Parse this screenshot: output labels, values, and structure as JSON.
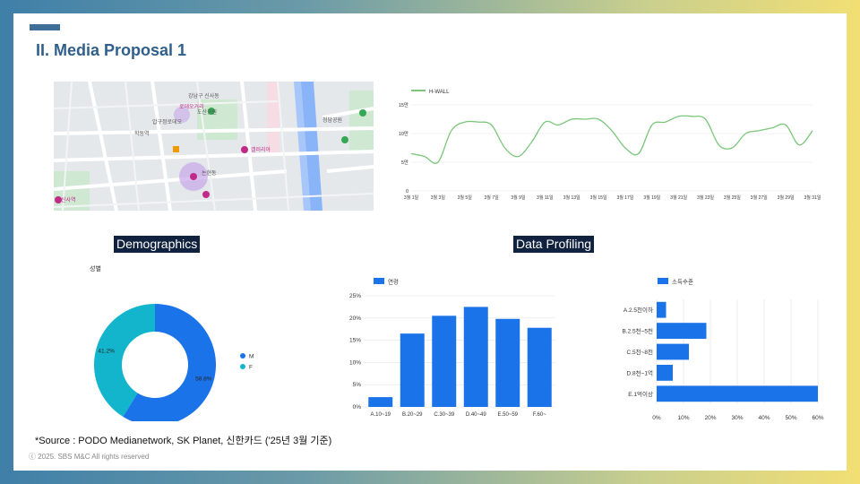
{
  "slide": {
    "title": "II. Media Proposal 1",
    "section_demographics": "Demographics",
    "section_profiling": "Data Profiling",
    "source": "*Source : PODO Medianetwork, SK Planet, 신한카드 ('25년 3월 기준)",
    "copyright": "ⓒ 2025. SBS M&C All rights reserved"
  },
  "map": {
    "labels": [
      "강남구 신사동",
      "로데오거리",
      "압구정로데오",
      "학동역",
      "청담공원",
      "도산공원",
      "논현동",
      "갤러리아",
      "신사역"
    ]
  },
  "chart_data": [
    {
      "type": "line",
      "legend": "H-WALL",
      "ylim": [
        0,
        15
      ],
      "y_ticks": [
        "0",
        "5만",
        "10만",
        "15만"
      ],
      "x_ticks": [
        "3월 1일",
        "3월 3일",
        "3월 5일",
        "3월 7일",
        "3월 9일",
        "3월 11일",
        "3월 13일",
        "3월 15일",
        "3월 17일",
        "3월 19일",
        "3월 21일",
        "3월 23일",
        "3월 25일",
        "3월 27일",
        "3월 29일",
        "3월 31일"
      ],
      "x": [
        1,
        2,
        3,
        4,
        5,
        6,
        7,
        8,
        9,
        10,
        11,
        12,
        13,
        14,
        15,
        16,
        17,
        18,
        19,
        20,
        21,
        22,
        23,
        24,
        25,
        26,
        27,
        28,
        29,
        30,
        31
      ],
      "values": [
        6.5,
        6.0,
        5.0,
        10.5,
        12.0,
        12.0,
        11.5,
        7.5,
        6.0,
        8.5,
        12.0,
        11.5,
        12.5,
        12.5,
        12.5,
        10.5,
        7.5,
        6.5,
        11.5,
        12.0,
        13.0,
        13.0,
        12.5,
        8.0,
        7.5,
        10.0,
        10.5,
        11.0,
        11.5,
        8.0,
        10.5
      ],
      "color": "#7bc67b"
    },
    {
      "type": "pie",
      "title": "성별",
      "labels": [
        "M",
        "F"
      ],
      "values": [
        58.8,
        41.2
      ],
      "value_labels": [
        "58.8%",
        "41.2%"
      ],
      "colors": [
        "#1a73e8",
        "#12b5cb"
      ]
    },
    {
      "type": "bar",
      "legend": "연령",
      "categories": [
        "A.10~19",
        "B.20~29",
        "C.30~39",
        "D.40~49",
        "E.50~59",
        "F.60~"
      ],
      "values": [
        2.2,
        16.5,
        20.5,
        22.5,
        19.8,
        17.8
      ],
      "y_ticks": [
        "0%",
        "5%",
        "10%",
        "15%",
        "20%",
        "25%"
      ],
      "ylim": [
        0,
        25
      ],
      "color": "#1a73e8"
    },
    {
      "type": "bar",
      "orientation": "horizontal",
      "legend": "소득수준",
      "categories": [
        "A.2.5천이하",
        "B.2.5천~5천",
        "C.5천~8천",
        "D.8천~1억",
        "E.1억이상"
      ],
      "values": [
        3.5,
        18.5,
        12,
        6,
        60
      ],
      "x_ticks": [
        "0%",
        "10%",
        "20%",
        "30%",
        "40%",
        "50%",
        "60%"
      ],
      "xlim": [
        0,
        60
      ],
      "color": "#1a73e8"
    }
  ]
}
